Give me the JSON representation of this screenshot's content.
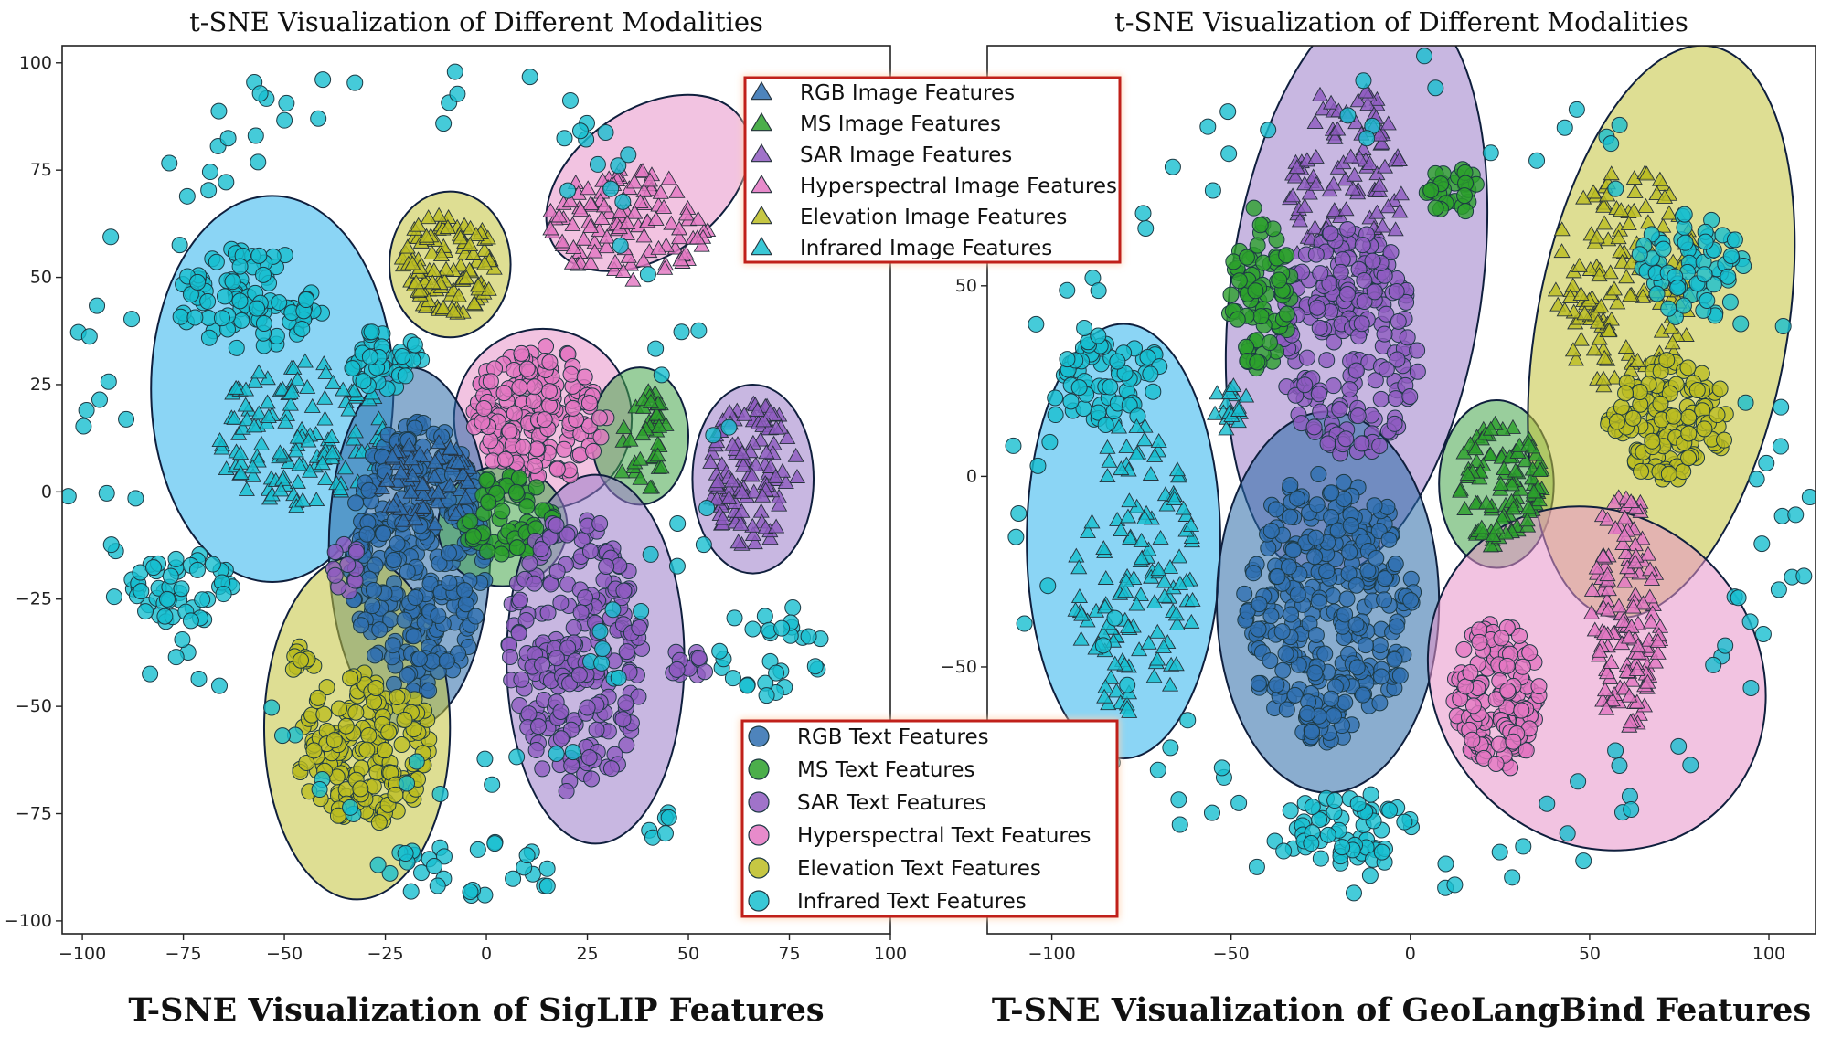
{
  "figure": {
    "caption_left": "T-SNE Visualization of SigLIP Features",
    "caption_right": "T-SNE Visualization of GeoLangBind Features"
  },
  "legend_image": {
    "entries": [
      {
        "label": "RGB Image Features",
        "color": "#2f6fb0"
      },
      {
        "label": "MS Image Features",
        "color": "#2ca02c"
      },
      {
        "label": "SAR Image Features",
        "color": "#8f5bc0"
      },
      {
        "label": "Hyperspectral Image Features",
        "color": "#e377c2"
      },
      {
        "label": "Elevation Image Features",
        "color": "#bcbd22"
      },
      {
        "label": "Infrared Image Features",
        "color": "#17becf"
      }
    ]
  },
  "legend_text": {
    "entries": [
      {
        "label": "RGB Text Features",
        "color": "#2f6fb0"
      },
      {
        "label": "MS Text Features",
        "color": "#2ca02c"
      },
      {
        "label": "SAR Text Features",
        "color": "#8f5bc0"
      },
      {
        "label": "Hyperspectral Text Features",
        "color": "#e377c2"
      },
      {
        "label": "Elevation Text Features",
        "color": "#bcbd22"
      },
      {
        "label": "Infrared Text Features",
        "color": "#17becf"
      }
    ]
  },
  "chart_data": [
    {
      "type": "scatter",
      "title": "t-SNE Visualization of Different Modalities",
      "xlim": [
        -105,
        100
      ],
      "ylim": [
        -103,
        104
      ],
      "xticks": [
        -100,
        -75,
        -50,
        -25,
        0,
        25,
        50,
        75,
        100
      ],
      "yticks": [
        -100,
        -75,
        -50,
        -25,
        0,
        25,
        50,
        75,
        100
      ],
      "grid": false,
      "legend_positions": [
        "top-right",
        "bottom-right"
      ],
      "ellipses": [
        {
          "modality": "Infrared",
          "cx": -53,
          "cy": 24,
          "rx": 30,
          "ry": 45,
          "angle": 0
        },
        {
          "modality": "Elevation",
          "cx": -9,
          "cy": 53,
          "rx": 15,
          "ry": 17,
          "angle": 0
        },
        {
          "modality": "Hyperspectral",
          "cx": 40,
          "cy": 72,
          "rx": 28,
          "ry": 17,
          "angle": -35
        },
        {
          "modality": "Hyperspectral",
          "cx": 14,
          "cy": 17,
          "rx": 22,
          "ry": 21,
          "angle": 0
        },
        {
          "modality": "MS",
          "cx": 38,
          "cy": 13,
          "rx": 12,
          "ry": 16,
          "angle": 0
        },
        {
          "modality": "SAR",
          "cx": 66,
          "cy": 3,
          "rx": 15,
          "ry": 22,
          "angle": 0
        },
        {
          "modality": "RGB",
          "cx": -19,
          "cy": -13,
          "rx": 20,
          "ry": 42,
          "angle": 0
        },
        {
          "modality": "MS",
          "cx": 4,
          "cy": -8,
          "rx": 16,
          "ry": 14,
          "angle": 0
        },
        {
          "modality": "SAR",
          "cx": 27,
          "cy": -39,
          "rx": 22,
          "ry": 43,
          "angle": 0
        },
        {
          "modality": "Elevation",
          "cx": -32,
          "cy": -55,
          "rx": 23,
          "ry": 40,
          "angle": 0
        }
      ],
      "clusters": [
        {
          "modality": "Infrared",
          "kind": "image",
          "cx": -45,
          "cy": 13,
          "rx": 22,
          "ry": 18,
          "n": 130
        },
        {
          "modality": "Infrared",
          "kind": "text",
          "cx": -58,
          "cy": 45,
          "rx": 20,
          "ry": 12,
          "n": 90
        },
        {
          "modality": "Infrared",
          "kind": "text",
          "cx": -25,
          "cy": 31,
          "rx": 10,
          "ry": 7,
          "n": 40
        },
        {
          "modality": "Elevation",
          "kind": "image",
          "cx": -9,
          "cy": 53,
          "rx": 12,
          "ry": 12,
          "n": 110
        },
        {
          "modality": "Hyperspectral",
          "kind": "image",
          "cx": 35,
          "cy": 62,
          "rx": 20,
          "ry": 13,
          "n": 110
        },
        {
          "modality": "Hyperspectral",
          "kind": "text",
          "cx": 13,
          "cy": 18,
          "rx": 17,
          "ry": 16,
          "n": 170
        },
        {
          "modality": "MS",
          "kind": "image",
          "cx": 39,
          "cy": 12,
          "rx": 7,
          "ry": 12,
          "n": 40
        },
        {
          "modality": "SAR",
          "kind": "image",
          "cx": 66,
          "cy": 4,
          "rx": 11,
          "ry": 17,
          "n": 110
        },
        {
          "modality": "RGB",
          "kind": "text",
          "cx": -17,
          "cy": -15,
          "rx": 17,
          "ry": 32,
          "n": 300
        },
        {
          "modality": "RGB",
          "kind": "image",
          "cx": -15,
          "cy": 2,
          "rx": 12,
          "ry": 10,
          "n": 60
        },
        {
          "modality": "MS",
          "kind": "text",
          "cx": 5,
          "cy": -6,
          "rx": 12,
          "ry": 10,
          "n": 60
        },
        {
          "modality": "SAR",
          "kind": "text",
          "cx": 22,
          "cy": -38,
          "rx": 17,
          "ry": 33,
          "n": 230
        },
        {
          "modality": "SAR",
          "kind": "text",
          "cx": 50,
          "cy": -40,
          "rx": 5,
          "ry": 4,
          "n": 14
        },
        {
          "modality": "SAR",
          "kind": "text",
          "cx": -35,
          "cy": -18,
          "rx": 5,
          "ry": 6,
          "n": 12
        },
        {
          "modality": "Elevation",
          "kind": "text",
          "cx": -30,
          "cy": -60,
          "rx": 17,
          "ry": 18,
          "n": 170
        },
        {
          "modality": "Elevation",
          "kind": "text",
          "cx": -46,
          "cy": -39,
          "rx": 4,
          "ry": 3,
          "n": 10
        },
        {
          "modality": "Infrared",
          "kind": "text",
          "cx": -75,
          "cy": -22,
          "rx": 13,
          "ry": 9,
          "n": 50
        },
        {
          "modality": "Infrared",
          "kind": "ring",
          "cx": -22,
          "cy": 14,
          "rx": 72,
          "ry": 80,
          "n": 95
        },
        {
          "modality": "Infrared",
          "kind": "text",
          "cx": -4,
          "cy": -88,
          "rx": 24,
          "ry": 7,
          "n": 30
        },
        {
          "modality": "Infrared",
          "kind": "text",
          "cx": 71,
          "cy": -37,
          "rx": 14,
          "ry": 11,
          "n": 28
        },
        {
          "modality": "Infrared",
          "kind": "text",
          "cx": 42,
          "cy": -77,
          "rx": 7,
          "ry": 5,
          "n": 6
        }
      ]
    },
    {
      "type": "scatter",
      "title": "t-SNE Visualization of Different Modalities",
      "xlim": [
        -118,
        113
      ],
      "ylim": [
        -120,
        113
      ],
      "xticks": [
        -100,
        -50,
        0,
        50,
        100
      ],
      "yticks": [
        -50,
        0,
        50
      ],
      "grid": false,
      "ellipses": [
        {
          "modality": "Infrared",
          "cx": -80,
          "cy": -17,
          "rx": 27,
          "ry": 57,
          "angle": 0
        },
        {
          "modality": "SAR",
          "cx": -15,
          "cy": 50,
          "rx": 35,
          "ry": 77,
          "angle": 8
        },
        {
          "modality": "MS",
          "cx": 24,
          "cy": -2,
          "rx": 16,
          "ry": 22,
          "angle": 0
        },
        {
          "modality": "Elevation",
          "cx": 70,
          "cy": 38,
          "rx": 35,
          "ry": 76,
          "angle": 10
        },
        {
          "modality": "RGB",
          "cx": -23,
          "cy": -33,
          "rx": 31,
          "ry": 50,
          "angle": 0
        },
        {
          "modality": "Hyperspectral",
          "cx": 52,
          "cy": -53,
          "rx": 45,
          "ry": 47,
          "angle": -40
        }
      ],
      "clusters": [
        {
          "modality": "Infrared",
          "kind": "text",
          "cx": -83,
          "cy": 25,
          "rx": 15,
          "ry": 12,
          "n": 60
        },
        {
          "modality": "Infrared",
          "kind": "image",
          "cx": -77,
          "cy": -25,
          "rx": 17,
          "ry": 40,
          "n": 130
        },
        {
          "modality": "SAR",
          "kind": "image",
          "cx": -18,
          "cy": 72,
          "rx": 16,
          "ry": 32,
          "n": 120
        },
        {
          "modality": "SAR",
          "kind": "text",
          "cx": -17,
          "cy": 35,
          "rx": 20,
          "ry": 30,
          "n": 200
        },
        {
          "modality": "MS",
          "kind": "text",
          "cx": -42,
          "cy": 50,
          "rx": 9,
          "ry": 22,
          "n": 80
        },
        {
          "modality": "MS",
          "kind": "text",
          "cx": 12,
          "cy": 75,
          "rx": 8,
          "ry": 6,
          "n": 30
        },
        {
          "modality": "MS",
          "kind": "image",
          "cx": 25,
          "cy": -2,
          "rx": 12,
          "ry": 17,
          "n": 100
        },
        {
          "modality": "Elevation",
          "kind": "image",
          "cx": 60,
          "cy": 52,
          "rx": 20,
          "ry": 30,
          "n": 140
        },
        {
          "modality": "Elevation",
          "kind": "text",
          "cx": 72,
          "cy": 15,
          "rx": 17,
          "ry": 16,
          "n": 130
        },
        {
          "modality": "RGB",
          "kind": "text",
          "cx": -23,
          "cy": -34,
          "rx": 24,
          "ry": 36,
          "n": 300
        },
        {
          "modality": "Hyperspectral",
          "kind": "image",
          "cx": 60,
          "cy": -35,
          "rx": 10,
          "ry": 32,
          "n": 130
        },
        {
          "modality": "Hyperspectral",
          "kind": "text",
          "cx": 24,
          "cy": -58,
          "rx": 12,
          "ry": 20,
          "n": 150
        },
        {
          "modality": "Infrared",
          "kind": "text",
          "cx": 78,
          "cy": 55,
          "rx": 15,
          "ry": 15,
          "n": 60
        },
        {
          "modality": "Infrared",
          "kind": "ring",
          "cx": 0,
          "cy": 0,
          "rx": 100,
          "ry": 97,
          "n": 110
        },
        {
          "modality": "Infrared",
          "kind": "text",
          "cx": -16,
          "cy": -93,
          "rx": 17,
          "ry": 10,
          "n": 50
        },
        {
          "modality": "Infrared",
          "kind": "image",
          "cx": -50,
          "cy": 18,
          "rx": 5,
          "ry": 6,
          "n": 18
        }
      ]
    }
  ]
}
